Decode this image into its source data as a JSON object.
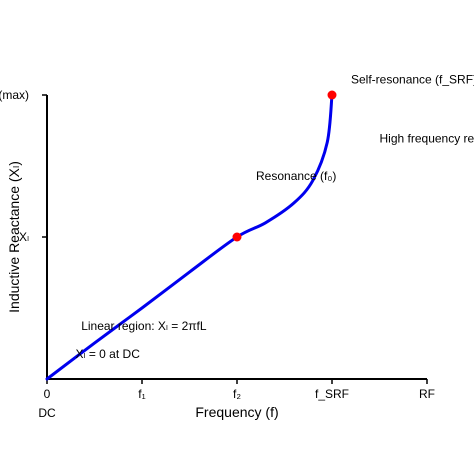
{
  "chart_data": {
    "type": "line",
    "title": "",
    "xlabel": "Frequency (f)",
    "ylabel": "Inductive Reactance (Xₗ)",
    "xlim": [
      0,
      4
    ],
    "ylim": [
      0,
      3
    ],
    "x_ticks": [
      {
        "value": 0,
        "label": "0"
      },
      {
        "value": 1,
        "label": "f₁"
      },
      {
        "value": 2,
        "label": "f₂"
      },
      {
        "value": 3,
        "label": "f_SRF"
      },
      {
        "value": 4,
        "label": "RF"
      }
    ],
    "x_range_labels": [
      {
        "value": 0,
        "label": "DC"
      }
    ],
    "y_ticks": [
      {
        "value": 1.5,
        "label": "Xₗ"
      },
      {
        "value": 3,
        "label": "Xₗ(max)"
      }
    ],
    "grid": false,
    "legend": "none",
    "series": [
      {
        "color": "#0000ee",
        "x": [
          0,
          0.5,
          1,
          1.5,
          2,
          2.3,
          2.6,
          2.8,
          2.95,
          3.0
        ],
        "y": [
          0,
          0.38,
          0.75,
          1.13,
          1.5,
          1.65,
          1.86,
          2.1,
          2.5,
          3.0
        ]
      }
    ],
    "highlight_points": [
      {
        "x": 2,
        "y": 1.5,
        "color": "#ff0000"
      },
      {
        "x": 3,
        "y": 3.0,
        "color": "#ff0000"
      }
    ],
    "annotations": [
      {
        "text": "Self-resonance (f_SRF)",
        "x": 3.2,
        "y": 3.12,
        "anchor": "start"
      },
      {
        "text": "High frequency region",
        "x": 3.5,
        "y": 2.5,
        "anchor": "start"
      },
      {
        "text": "Resonance (f₀)",
        "x": 2.2,
        "y": 2.1,
        "anchor": "start"
      },
      {
        "text": "Linear region: Xₗ = 2πfL",
        "x": 0.36,
        "y": 0.52,
        "anchor": "start"
      },
      {
        "text": "Xₗ = 0 at DC",
        "x": 0.3,
        "y": 0.22,
        "anchor": "start"
      }
    ],
    "colors": {
      "line": "#0000ee",
      "point": "#ff0000",
      "axis": "#000000"
    }
  }
}
